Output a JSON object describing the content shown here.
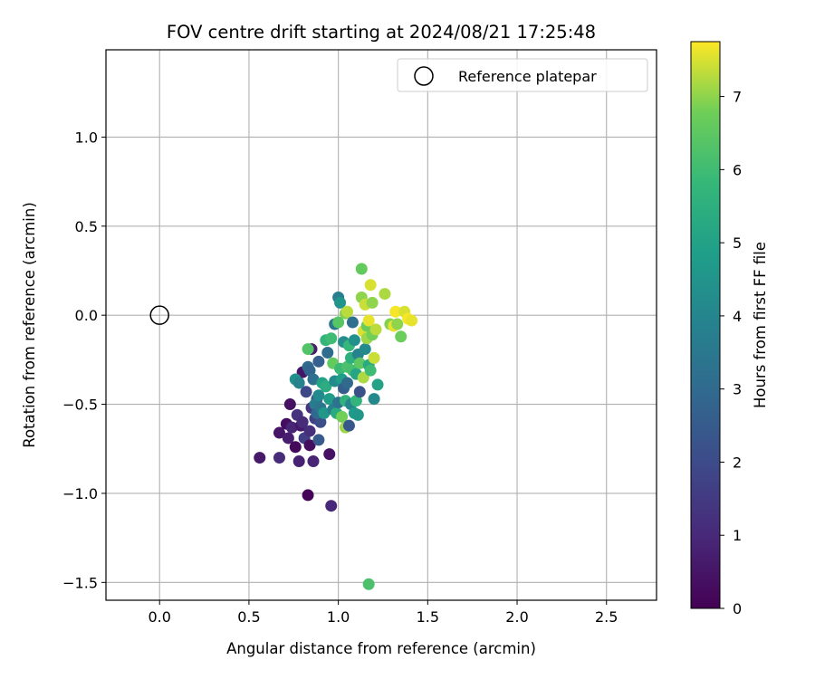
{
  "chart_data": {
    "type": "scatter",
    "title": "FOV centre drift starting at 2024/08/21 17:25:48",
    "xlabel": "Angular distance from reference (arcmin)",
    "ylabel": "Rotation from reference (arcmin)",
    "xlim": [
      -0.3,
      2.78
    ],
    "ylim": [
      -1.6,
      1.49
    ],
    "x_ticks": [
      0.0,
      0.5,
      1.0,
      1.5,
      2.0,
      2.5
    ],
    "x_tick_labels": [
      "0.0",
      "0.5",
      "1.0",
      "1.5",
      "2.0",
      "2.5"
    ],
    "y_ticks": [
      -1.5,
      -1.0,
      -0.5,
      0.0,
      0.5,
      1.0
    ],
    "y_tick_labels": [
      "−1.5",
      "−1.0",
      "−0.5",
      "0.0",
      "0.5",
      "1.0"
    ],
    "grid": true,
    "legend": {
      "position": "top-right",
      "entries": [
        {
          "label": "Reference platepar",
          "marker": "open-circle"
        }
      ]
    },
    "reference_point": {
      "x": 0.0,
      "y": 0.0
    },
    "colorbar": {
      "label": "Hours from first FF file",
      "colormap": "viridis",
      "range": [
        0,
        7.75
      ],
      "ticks": [
        0,
        1,
        2,
        3,
        4,
        5,
        6,
        7
      ],
      "tick_labels": [
        "0",
        "1",
        "2",
        "3",
        "4",
        "5",
        "6",
        "7"
      ]
    },
    "points": [
      {
        "x": 0.56,
        "y": -0.8,
        "t": 0.6
      },
      {
        "x": 0.67,
        "y": -0.8,
        "t": 1.1
      },
      {
        "x": 0.67,
        "y": -0.66,
        "t": 0.5
      },
      {
        "x": 0.71,
        "y": -0.61,
        "t": 0.3
      },
      {
        "x": 0.72,
        "y": -0.69,
        "t": 0.7
      },
      {
        "x": 0.73,
        "y": -0.5,
        "t": 0.4
      },
      {
        "x": 0.74,
        "y": -0.63,
        "t": 0.9
      },
      {
        "x": 0.76,
        "y": -0.74,
        "t": 0.2
      },
      {
        "x": 0.77,
        "y": -0.56,
        "t": 1.3
      },
      {
        "x": 0.78,
        "y": -0.82,
        "t": 0.8
      },
      {
        "x": 0.79,
        "y": -0.62,
        "t": 0.6
      },
      {
        "x": 0.8,
        "y": -0.6,
        "t": 1.1
      },
      {
        "x": 0.8,
        "y": -0.32,
        "t": 0.5
      },
      {
        "x": 0.81,
        "y": -0.69,
        "t": 1.6
      },
      {
        "x": 0.82,
        "y": -0.43,
        "t": 1.9
      },
      {
        "x": 0.83,
        "y": -1.01,
        "t": 0.1
      },
      {
        "x": 0.84,
        "y": -0.73,
        "t": 0.3
      },
      {
        "x": 0.84,
        "y": -0.65,
        "t": 1.2
      },
      {
        "x": 0.85,
        "y": -0.52,
        "t": 1.4
      },
      {
        "x": 0.85,
        "y": -0.19,
        "t": 0.7
      },
      {
        "x": 0.86,
        "y": -0.82,
        "t": 0.9
      },
      {
        "x": 0.87,
        "y": -0.58,
        "t": 1.7
      },
      {
        "x": 0.88,
        "y": -0.47,
        "t": 2.3
      },
      {
        "x": 0.89,
        "y": -0.7,
        "t": 2.5
      },
      {
        "x": 0.9,
        "y": -0.6,
        "t": 2.1
      },
      {
        "x": 0.95,
        "y": -0.78,
        "t": 0.4
      },
      {
        "x": 0.96,
        "y": -1.07,
        "t": 1.0
      },
      {
        "x": 0.76,
        "y": -0.36,
        "t": 4.4
      },
      {
        "x": 0.78,
        "y": -0.38,
        "t": 3.9
      },
      {
        "x": 0.83,
        "y": -0.29,
        "t": 3.0
      },
      {
        "x": 0.83,
        "y": -0.19,
        "t": 6.3
      },
      {
        "x": 0.84,
        "y": -0.31,
        "t": 2.8
      },
      {
        "x": 0.86,
        "y": -0.36,
        "t": 3.2
      },
      {
        "x": 0.87,
        "y": -0.5,
        "t": 3.6
      },
      {
        "x": 0.88,
        "y": -0.55,
        "t": 2.9
      },
      {
        "x": 0.89,
        "y": -0.45,
        "t": 4.1
      },
      {
        "x": 0.89,
        "y": -0.26,
        "t": 2.7
      },
      {
        "x": 0.9,
        "y": -0.52,
        "t": 3.4
      },
      {
        "x": 0.91,
        "y": -0.38,
        "t": 5.0
      },
      {
        "x": 0.92,
        "y": -0.55,
        "t": 4.6
      },
      {
        "x": 0.93,
        "y": -0.4,
        "t": 5.4
      },
      {
        "x": 0.93,
        "y": -0.14,
        "t": 5.7
      },
      {
        "x": 0.94,
        "y": -0.21,
        "t": 3.1
      },
      {
        "x": 0.95,
        "y": -0.47,
        "t": 4.8
      },
      {
        "x": 0.96,
        "y": -0.13,
        "t": 6.0
      },
      {
        "x": 0.97,
        "y": -0.27,
        "t": 6.6
      },
      {
        "x": 0.97,
        "y": -0.53,
        "t": 3.8
      },
      {
        "x": 0.98,
        "y": -0.05,
        "t": 3.5
      },
      {
        "x": 0.98,
        "y": -0.37,
        "t": 4.2
      },
      {
        "x": 0.99,
        "y": -0.55,
        "t": 5.3
      },
      {
        "x": 1.0,
        "y": -0.04,
        "t": 6.4
      },
      {
        "x": 1.0,
        "y": -0.49,
        "t": 3.3
      },
      {
        "x": 1.0,
        "y": 0.1,
        "t": 3.7
      },
      {
        "x": 1.01,
        "y": -0.3,
        "t": 5.9
      },
      {
        "x": 1.01,
        "y": 0.07,
        "t": 4.5
      },
      {
        "x": 1.02,
        "y": -0.57,
        "t": 6.8
      },
      {
        "x": 1.02,
        "y": -0.36,
        "t": 4.9
      },
      {
        "x": 1.03,
        "y": -0.41,
        "t": 2.6
      },
      {
        "x": 1.03,
        "y": -0.15,
        "t": 4.3
      },
      {
        "x": 1.04,
        "y": -0.63,
        "t": 7.1
      },
      {
        "x": 1.04,
        "y": -0.48,
        "t": 5.6
      },
      {
        "x": 1.04,
        "y": 0.01,
        "t": 6.9
      },
      {
        "x": 1.05,
        "y": -0.29,
        "t": 6.2
      },
      {
        "x": 1.05,
        "y": -0.38,
        "t": 3.0
      },
      {
        "x": 1.05,
        "y": 0.02,
        "t": 7.3
      },
      {
        "x": 1.06,
        "y": -0.17,
        "t": 5.8
      },
      {
        "x": 1.06,
        "y": -0.62,
        "t": 2.4
      },
      {
        "x": 1.07,
        "y": -0.5,
        "t": 4.0
      },
      {
        "x": 1.07,
        "y": -0.24,
        "t": 5.5
      },
      {
        "x": 1.08,
        "y": -0.31,
        "t": 6.1
      },
      {
        "x": 1.08,
        "y": -0.04,
        "t": 3.2
      },
      {
        "x": 1.09,
        "y": -0.55,
        "t": 4.7
      },
      {
        "x": 1.09,
        "y": -0.14,
        "t": 4.4
      },
      {
        "x": 1.1,
        "y": -0.33,
        "t": 5.1
      },
      {
        "x": 1.1,
        "y": -0.48,
        "t": 5.7
      },
      {
        "x": 1.11,
        "y": -0.22,
        "t": 3.9
      },
      {
        "x": 1.11,
        "y": -0.56,
        "t": 4.6
      },
      {
        "x": 1.12,
        "y": -0.43,
        "t": 2.2
      },
      {
        "x": 1.12,
        "y": -0.27,
        "t": 6.5
      },
      {
        "x": 1.13,
        "y": 0.1,
        "t": 7.0
      },
      {
        "x": 1.13,
        "y": 0.26,
        "t": 6.6
      },
      {
        "x": 1.14,
        "y": -0.35,
        "t": 7.2
      },
      {
        "x": 1.14,
        "y": -0.09,
        "t": 7.5
      },
      {
        "x": 1.15,
        "y": -0.19,
        "t": 4.2
      },
      {
        "x": 1.15,
        "y": 0.06,
        "t": 7.4
      },
      {
        "x": 1.16,
        "y": -0.13,
        "t": 7.1
      },
      {
        "x": 1.16,
        "y": -0.06,
        "t": 6.7
      },
      {
        "x": 1.17,
        "y": -0.28,
        "t": 5.3
      },
      {
        "x": 1.17,
        "y": -0.03,
        "t": 7.6
      },
      {
        "x": 1.18,
        "y": -0.31,
        "t": 6.0
      },
      {
        "x": 1.18,
        "y": 0.17,
        "t": 7.5
      },
      {
        "x": 1.19,
        "y": 0.07,
        "t": 7.0
      },
      {
        "x": 1.19,
        "y": -0.11,
        "t": 6.8
      },
      {
        "x": 1.2,
        "y": -0.47,
        "t": 4.1
      },
      {
        "x": 1.2,
        "y": -0.24,
        "t": 7.4
      },
      {
        "x": 1.21,
        "y": -0.08,
        "t": 7.3
      },
      {
        "x": 1.22,
        "y": -0.39,
        "t": 5.0
      },
      {
        "x": 1.26,
        "y": 0.12,
        "t": 7.2
      },
      {
        "x": 1.29,
        "y": -0.05,
        "t": 6.9
      },
      {
        "x": 1.31,
        "y": -0.06,
        "t": 7.6
      },
      {
        "x": 1.32,
        "y": 0.02,
        "t": 7.7
      },
      {
        "x": 1.33,
        "y": -0.05,
        "t": 7.0
      },
      {
        "x": 1.35,
        "y": -0.12,
        "t": 6.7
      },
      {
        "x": 1.37,
        "y": 0.02,
        "t": 7.5
      },
      {
        "x": 1.39,
        "y": -0.02,
        "t": 7.7
      },
      {
        "x": 1.41,
        "y": -0.03,
        "t": 7.6
      },
      {
        "x": 1.17,
        "y": -1.51,
        "t": 6.2
      }
    ]
  }
}
